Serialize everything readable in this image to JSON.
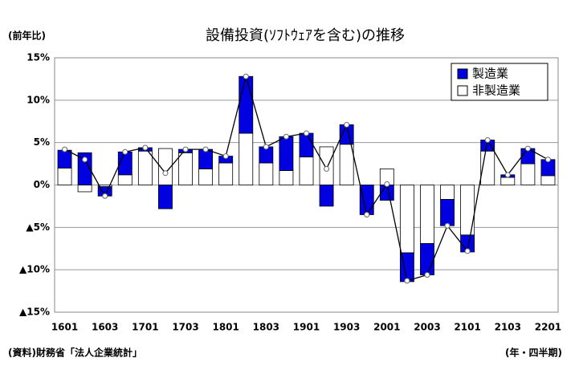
{
  "chart_data": {
    "type": "stacked_bar_line",
    "title": "設備投資(ｿﾌﾄｳｪｱを含む)の推移",
    "y_label": "(前年比)",
    "x_label": "(年・四半期)",
    "source": "(資料)財務省「法人企業統計」",
    "categories": [
      "1601",
      null,
      "1603",
      null,
      "1701",
      null,
      "1703",
      null,
      "1801",
      null,
      "1803",
      null,
      "1901",
      null,
      "1903",
      null,
      "2001",
      null,
      "2003",
      null,
      "2101",
      null,
      "2103",
      null,
      "2201"
    ],
    "series": [
      {
        "name": "非製造業",
        "color": "#ffffff",
        "values": [
          2.0,
          -0.8,
          -0.2,
          1.2,
          4.0,
          4.3,
          3.8,
          1.9,
          2.6,
          6.1,
          2.6,
          1.7,
          3.3,
          4.5,
          4.8,
          0.0,
          1.9,
          -8.0,
          -6.9,
          -1.7,
          -5.9,
          4.0,
          0.9,
          2.5,
          1.1
        ]
      },
      {
        "name": "製造業",
        "color": "#0000e0",
        "values": [
          2.1,
          3.8,
          -1.1,
          2.7,
          0.4,
          -2.8,
          0.4,
          2.3,
          0.8,
          6.7,
          1.9,
          4.0,
          2.8,
          -2.5,
          2.3,
          -3.5,
          -1.8,
          -3.4,
          -3.7,
          -3.1,
          -2.0,
          1.3,
          0.3,
          1.8,
          1.9
        ]
      }
    ],
    "totals": {
      "color": "#000000",
      "values": [
        4.2,
        3.0,
        -1.3,
        3.9,
        4.4,
        1.4,
        4.2,
        4.2,
        3.4,
        12.8,
        4.5,
        5.7,
        6.1,
        1.9,
        7.1,
        -3.5,
        0.1,
        -11.3,
        -10.6,
        -4.8,
        -7.8,
        5.3,
        1.2,
        4.3,
        3.0
      ]
    },
    "ylim": [
      -15,
      15
    ],
    "yticks": [
      {
        "value": -15,
        "label": "▲15%"
      },
      {
        "value": -10,
        "label": "▲10%"
      },
      {
        "value": -5,
        "label": "▲5%"
      },
      {
        "value": 0,
        "label": "0%"
      },
      {
        "value": 5,
        "label": "5%"
      },
      {
        "value": 10,
        "label": "10%"
      },
      {
        "value": 15,
        "label": "15%"
      }
    ],
    "grid": true,
    "legend": "top-right"
  }
}
